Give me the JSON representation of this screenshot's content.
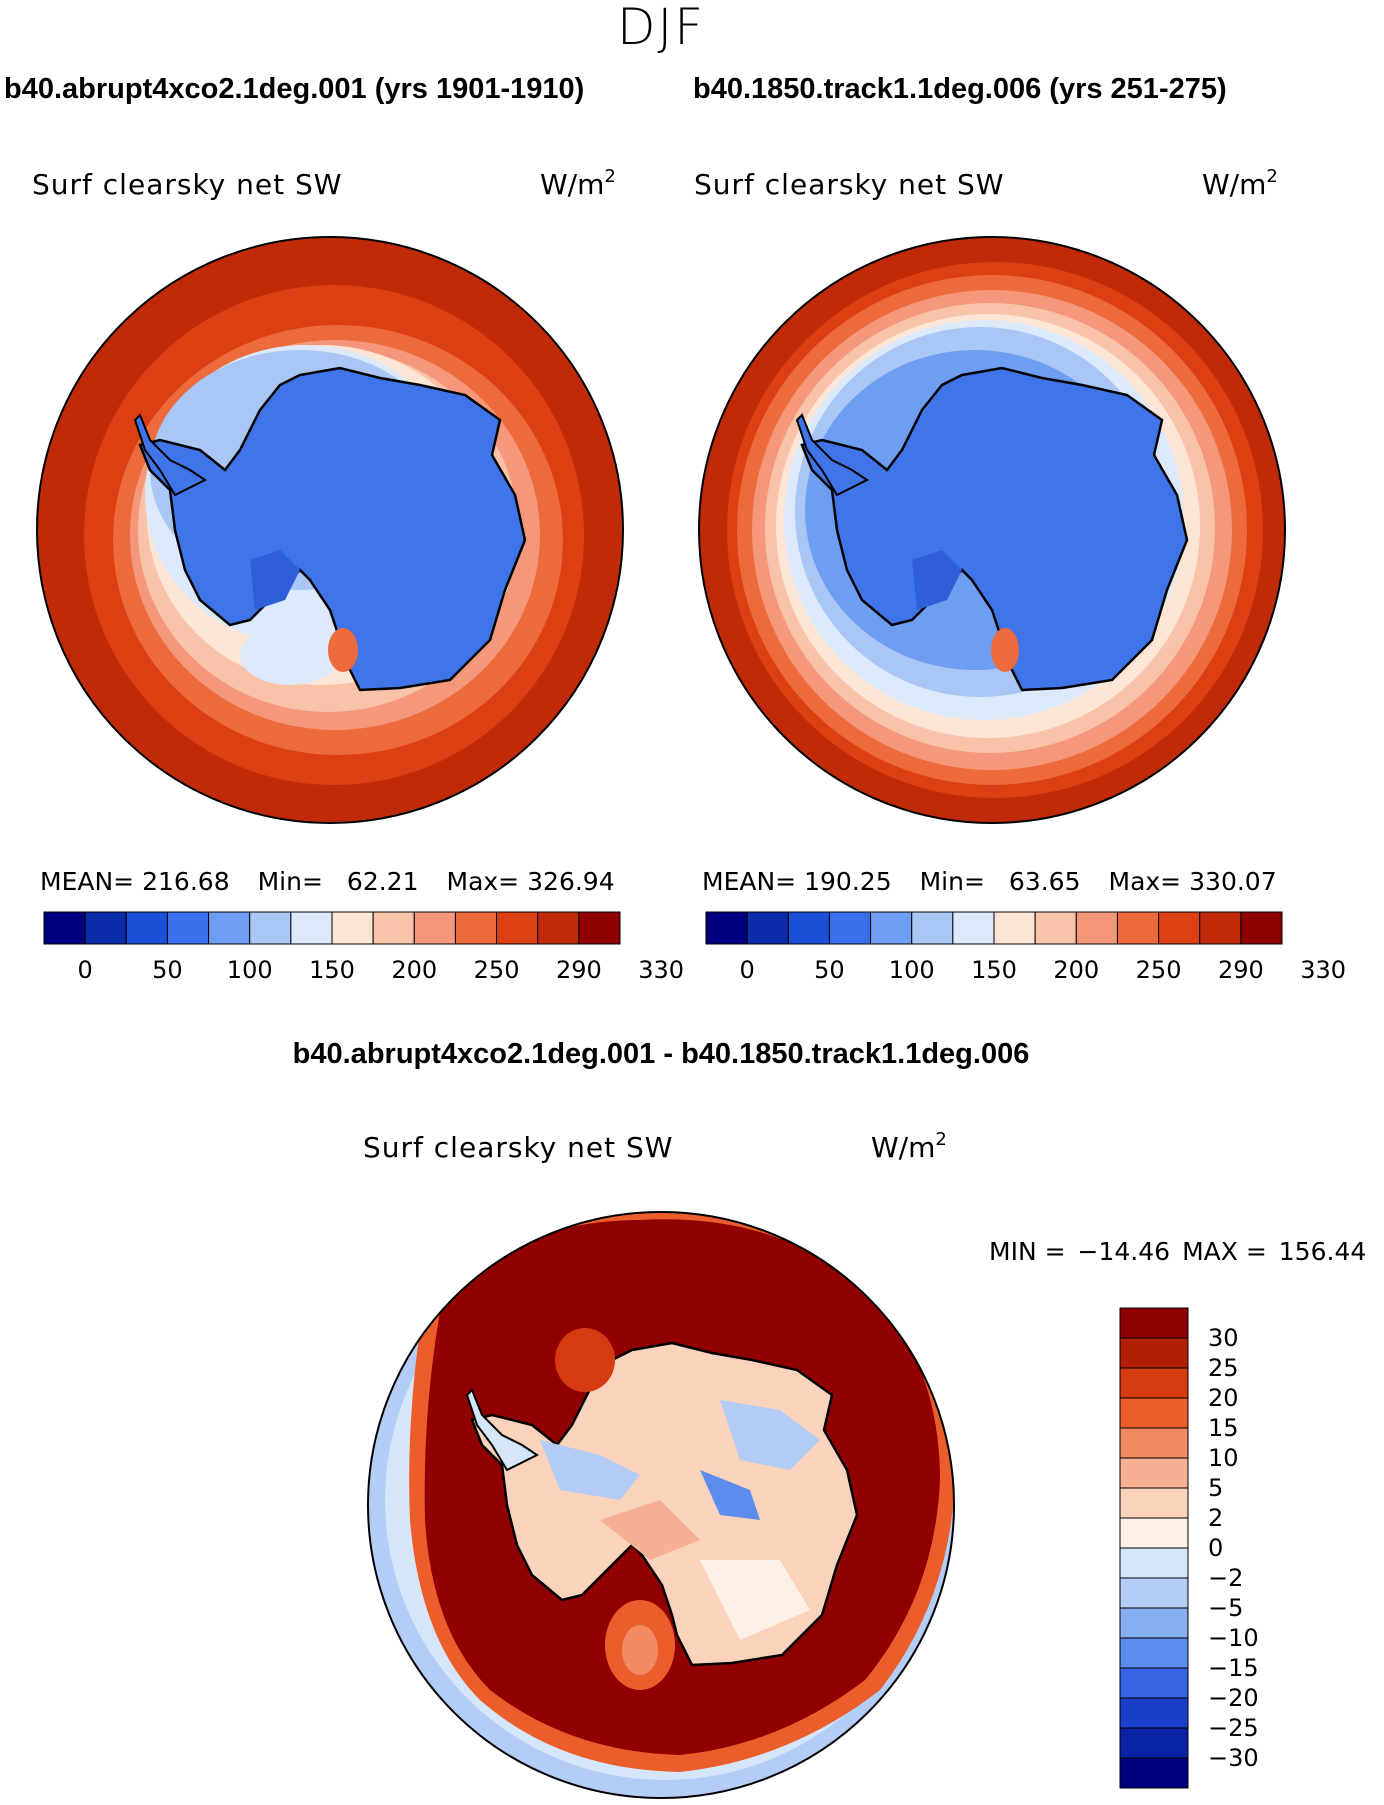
{
  "season": "DJF",
  "panels": [
    {
      "heading": "b40.abrupt4xco2.1deg.001 (yrs 1901-1910)",
      "field": "Surf clearsky net SW",
      "units_base": "W/m",
      "units_exp": "2",
      "stats": {
        "mean_label": "MEAN=",
        "mean": "216.68",
        "min_label": "Min=",
        "min": "62.21",
        "max_label": "Max=",
        "max": "326.94"
      },
      "ice_edge_offset": 0
    },
    {
      "heading": "b40.1850.track1.1deg.006 (yrs 251-275)",
      "field": "Surf clearsky net SW",
      "units_base": "W/m",
      "units_exp": "2",
      "stats": {
        "mean_label": "MEAN=",
        "mean": "190.25",
        "min_label": "Min=",
        "min": "63.65",
        "max_label": "Max=",
        "max": "330.07"
      },
      "ice_edge_offset": 1
    }
  ],
  "panel_colorbar": {
    "labels": [
      "0",
      "50",
      "100",
      "150",
      "200",
      "250",
      "290",
      "330"
    ],
    "colors": [
      "#00007f",
      "#0a2ca8",
      "#1b4fd6",
      "#3a6fec",
      "#6e9ef2",
      "#a9c6f5",
      "#dbe9fb",
      "#fde5d6",
      "#f8c3a8",
      "#f4977a",
      "#ec6a3c",
      "#dc3f12",
      "#c12a08",
      "#900000"
    ]
  },
  "diff": {
    "heading": "b40.abrupt4xco2.1deg.001 - b40.1850.track1.1deg.006",
    "field": "Surf clearsky net SW",
    "units_base": "W/m",
    "units_exp": "2",
    "min_label": "MIN =",
    "min": "−14.46",
    "max_label": "MAX =",
    "max": "156.44",
    "colorbar_labels": [
      "30",
      "25",
      "20",
      "15",
      "10",
      "5",
      "2",
      "0",
      "−2",
      "−5",
      "−10",
      "−15",
      "−20",
      "−25",
      "−30"
    ],
    "colorbar_colors": [
      "#900000",
      "#b31f05",
      "#d63a10",
      "#ec5d2c",
      "#f28a63",
      "#f6b092",
      "#fbd2bc",
      "#fdf0e6",
      "#d6e6fa",
      "#b3cdf6",
      "#88aef2",
      "#5b8cee",
      "#3563e4",
      "#1a3fc9",
      "#0a22a4",
      "#00007f"
    ]
  },
  "colors": {
    "continent": "#3f75e8",
    "continent_dark": "#2f5fd8",
    "ocean_outer_ctrl": "#c12a08",
    "ocean_outer_4x": "#c12a08",
    "diff_ocean": "#900000",
    "diff_outer": "#b3cdf6",
    "diff_land": "#fbd2bc"
  }
}
